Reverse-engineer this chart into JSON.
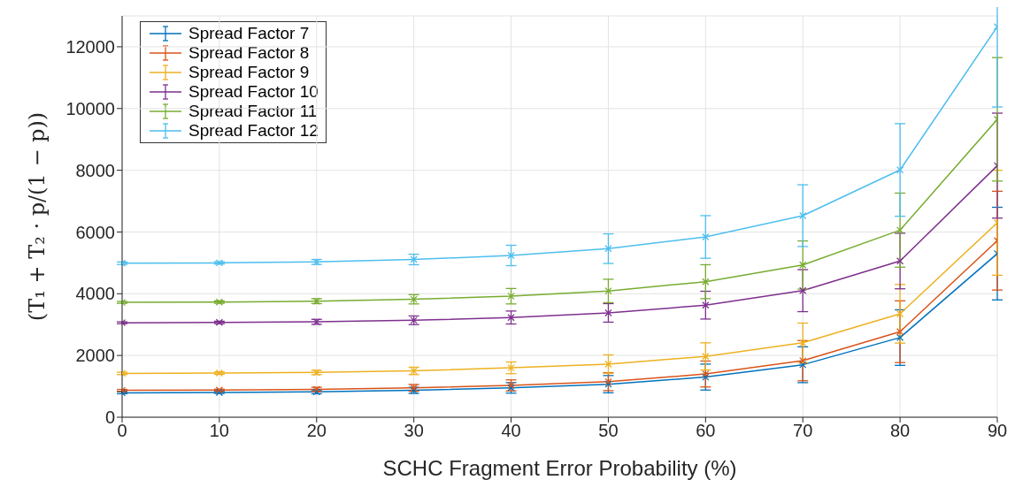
{
  "chart_data": {
    "type": "line",
    "xlabel": "SCHC Fragment Error Probability (%)",
    "ylabel": "(T₁ + T₂ · p/(1 − p))",
    "x": [
      0,
      10,
      20,
      30,
      40,
      50,
      60,
      70,
      80,
      90
    ],
    "xlim": [
      0,
      90
    ],
    "xticks": [
      0,
      10,
      20,
      30,
      40,
      50,
      60,
      70,
      80,
      90
    ],
    "ylim": [
      0,
      13000
    ],
    "yticks": [
      0,
      2000,
      4000,
      6000,
      8000,
      10000,
      12000
    ],
    "grid": true,
    "legend": "top left",
    "marker": "cross",
    "line_style": "solid",
    "series": [
      {
        "name": "Spread Factor 7",
        "color": "#0072bd",
        "values": [
          790,
          800,
          820,
          870,
          950,
          1070,
          1300,
          1700,
          2580,
          5300
        ],
        "errors": [
          30,
          30,
          60,
          100,
          170,
          280,
          420,
          580,
          900,
          1500
        ]
      },
      {
        "name": "Spread Factor 8",
        "color": "#d95319",
        "values": [
          870,
          880,
          900,
          950,
          1030,
          1150,
          1400,
          1830,
          2770,
          5720
        ],
        "errors": [
          30,
          30,
          70,
          110,
          180,
          290,
          420,
          650,
          1000,
          1600
        ]
      },
      {
        "name": "Spread Factor 9",
        "color": "#edb120",
        "values": [
          1420,
          1430,
          1450,
          1500,
          1600,
          1720,
          1970,
          2410,
          3350,
          6300
        ],
        "errors": [
          40,
          40,
          70,
          120,
          190,
          300,
          440,
          640,
          950,
          1700
        ]
      },
      {
        "name": "Spread Factor 10",
        "color": "#7e2f8e",
        "values": [
          3060,
          3070,
          3090,
          3140,
          3230,
          3380,
          3630,
          4100,
          5060,
          8150
        ],
        "errors": [
          30,
          40,
          80,
          140,
          210,
          300,
          450,
          680,
          900,
          1700
        ]
      },
      {
        "name": "Spread Factor 11",
        "color": "#77ac30",
        "values": [
          3720,
          3730,
          3760,
          3820,
          3920,
          4090,
          4390,
          4930,
          6060,
          9650
        ],
        "errors": [
          30,
          40,
          80,
          150,
          250,
          380,
          550,
          780,
          1200,
          2000
        ]
      },
      {
        "name": "Spread Factor 12",
        "color": "#4dbeee",
        "values": [
          4990,
          5000,
          5030,
          5110,
          5240,
          5460,
          5840,
          6530,
          8010,
          12650
        ],
        "errors": [
          40,
          40,
          80,
          170,
          330,
          480,
          690,
          1000,
          1500,
          2600
        ]
      }
    ]
  }
}
